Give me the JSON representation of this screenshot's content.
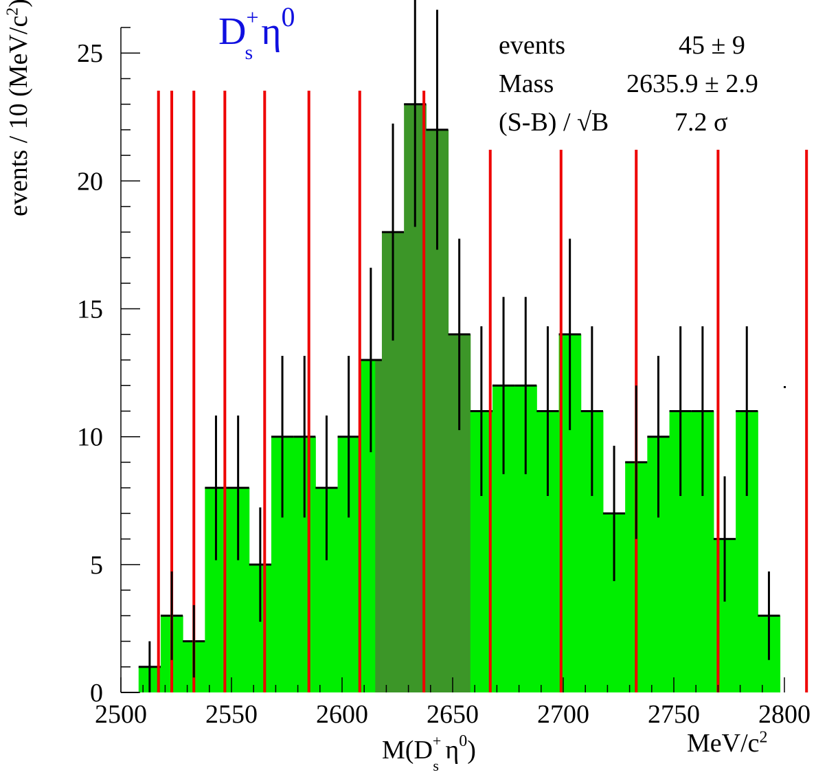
{
  "title": {
    "main": "D",
    "sub": "s",
    "sup": "+",
    "particle": "η",
    "particle_sup": "0"
  },
  "stats": {
    "events_label": "events",
    "events_value": "45 ± 9",
    "mass_label": "Mass",
    "mass_value": "2635.9 ± 2.9",
    "signif_label": "(S-B) / √B",
    "signif_value": "7.2 σ"
  },
  "axes": {
    "ylabel": "events / 10 (MeV/c",
    "ylabel_sup": "2",
    "ylabel_end": ")",
    "xlabel_pre": "M(D",
    "xlabel_sub": "s",
    "xlabel_sup": "+",
    "xlabel_mid": " η",
    "xlabel_sup2": "0",
    "xlabel_end": ")",
    "xunit": "MeV/c",
    "xunit_sup": "2"
  },
  "chart_data": {
    "type": "bar",
    "subtype": "histogram",
    "xlim": [
      2500,
      2800
    ],
    "ylim": [
      0,
      26
    ],
    "x_ticks": [
      2500,
      2550,
      2600,
      2650,
      2700,
      2750,
      2800
    ],
    "y_ticks": [
      0,
      5,
      10,
      15,
      20,
      25
    ],
    "bins": [
      {
        "x0": 2508,
        "x1": 2518,
        "value": 1
      },
      {
        "x0": 2518,
        "x1": 2528,
        "value": 3
      },
      {
        "x0": 2528,
        "x1": 2538,
        "value": 2
      },
      {
        "x0": 2538,
        "x1": 2548,
        "value": 8
      },
      {
        "x0": 2548,
        "x1": 2558,
        "value": 8
      },
      {
        "x0": 2558,
        "x1": 2568,
        "value": 5
      },
      {
        "x0": 2568,
        "x1": 2578,
        "value": 10
      },
      {
        "x0": 2578,
        "x1": 2588,
        "value": 10
      },
      {
        "x0": 2588,
        "x1": 2598,
        "value": 8
      },
      {
        "x0": 2598,
        "x1": 2608,
        "value": 10
      },
      {
        "x0": 2608,
        "x1": 2618,
        "value": 13
      },
      {
        "x0": 2618,
        "x1": 2628,
        "value": 18
      },
      {
        "x0": 2628,
        "x1": 2638,
        "value": 23
      },
      {
        "x0": 2638,
        "x1": 2648,
        "value": 22
      },
      {
        "x0": 2648,
        "x1": 2658,
        "value": 14
      },
      {
        "x0": 2658,
        "x1": 2668,
        "value": 11
      },
      {
        "x0": 2668,
        "x1": 2678,
        "value": 12
      },
      {
        "x0": 2678,
        "x1": 2688,
        "value": 12
      },
      {
        "x0": 2688,
        "x1": 2698,
        "value": 11
      },
      {
        "x0": 2698,
        "x1": 2708,
        "value": 14
      },
      {
        "x0": 2708,
        "x1": 2718,
        "value": 11
      },
      {
        "x0": 2718,
        "x1": 2728,
        "value": 7
      },
      {
        "x0": 2728,
        "x1": 2738,
        "value": 9
      },
      {
        "x0": 2738,
        "x1": 2748,
        "value": 10
      },
      {
        "x0": 2748,
        "x1": 2758,
        "value": 11
      },
      {
        "x0": 2758,
        "x1": 2768,
        "value": 11
      },
      {
        "x0": 2768,
        "x1": 2778,
        "value": 6
      },
      {
        "x0": 2778,
        "x1": 2788,
        "value": 11
      },
      {
        "x0": 2788,
        "x1": 2798,
        "value": 3
      }
    ],
    "signal_region": [
      2615,
      2658
    ],
    "vertical_lines_x": [
      2517,
      2523,
      2533,
      2547,
      2565,
      2585,
      2608,
      2637,
      2667,
      2699,
      2733,
      2770,
      2810
    ],
    "colors": {
      "histogram": "#00ee00",
      "signal_region": "#3c9628",
      "lines": "#ee0000",
      "errors": "#000000",
      "title": "#1010e0"
    }
  }
}
